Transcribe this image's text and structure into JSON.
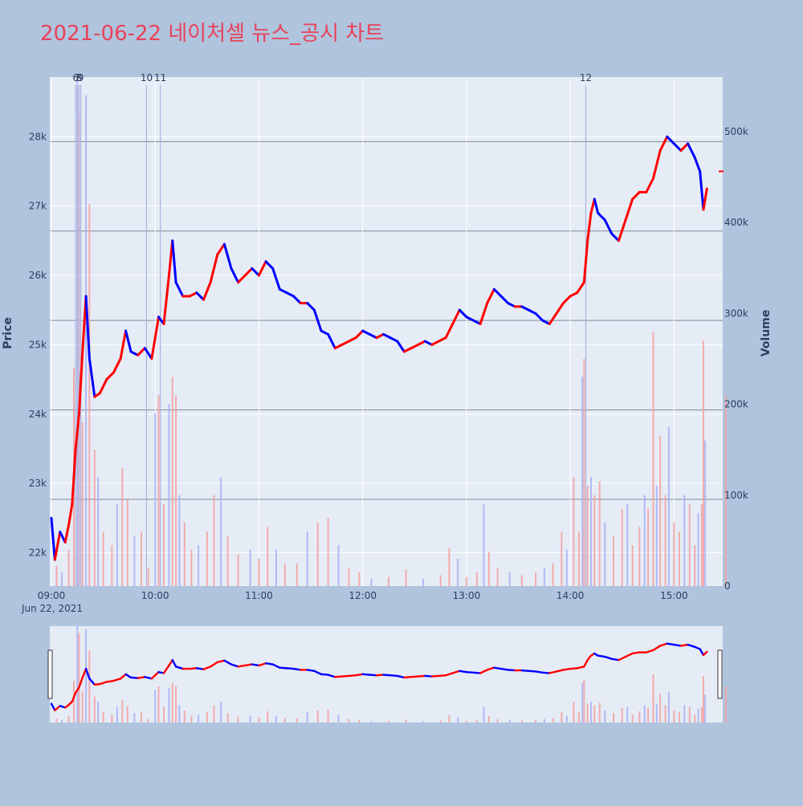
{
  "title": "2021-06-22 네이처셀 뉴스_공시 차트",
  "colors": {
    "background": "#b0c4de",
    "plot_bg": "#e5ecf6",
    "up": "#ff0000",
    "down": "#0000ff",
    "title": "#e8425a",
    "axis_text": "#2a3f5f",
    "event_line": "#a9b3e0",
    "level_line": "#7f8896"
  },
  "chart_data": {
    "type": "candlestick",
    "title": "2021-06-22 네이처셀 뉴스_공시 차트",
    "xlabel": "",
    "ylabel": "Price",
    "y2label": "Volume",
    "date_label": "Jun 22, 2021",
    "x_ticks": [
      "09:00",
      "10:00",
      "11:00",
      "12:00",
      "13:00",
      "14:00",
      "15:00"
    ],
    "x_range": [
      "09:00",
      "15:30"
    ],
    "y_ticks": [
      22000,
      23000,
      24000,
      25000,
      26000,
      27000,
      28000
    ],
    "y_tick_labels": [
      "22k",
      "23k",
      "24k",
      "25k",
      "26k",
      "27k",
      "28k"
    ],
    "y_range": [
      21520,
      28860
    ],
    "y2_ticks": [
      0,
      100000,
      200000,
      300000,
      400000,
      500000
    ],
    "y2_tick_labels": [
      "0",
      "100k",
      "200k",
      "300k",
      "400k",
      "500k"
    ],
    "y2_range": [
      0,
      560000
    ],
    "level_lines": [
      22770,
      24060,
      25350,
      26640,
      27930
    ],
    "events": [
      {
        "label": "6",
        "time": "09:14"
      },
      {
        "label": "7",
        "time": "09:15"
      },
      {
        "label": "8",
        "time": "09:16"
      },
      {
        "label": "9",
        "time": "09:17"
      },
      {
        "label": "10",
        "time": "09:55"
      },
      {
        "label": "11",
        "time": "10:03"
      },
      {
        "label": "12",
        "time": "14:09"
      }
    ],
    "price_path": [
      [
        "09:00",
        22500
      ],
      [
        "09:02",
        21900
      ],
      [
        "09:05",
        22300
      ],
      [
        "09:08",
        22150
      ],
      [
        "09:10",
        22400
      ],
      [
        "09:12",
        22700
      ],
      [
        "09:14",
        23500
      ],
      [
        "09:16",
        24000
      ],
      [
        "09:18",
        24900
      ],
      [
        "09:20",
        25700
      ],
      [
        "09:22",
        24800
      ],
      [
        "09:25",
        24250
      ],
      [
        "09:28",
        24300
      ],
      [
        "09:32",
        24500
      ],
      [
        "09:36",
        24600
      ],
      [
        "09:40",
        24800
      ],
      [
        "09:43",
        25200
      ],
      [
        "09:46",
        24900
      ],
      [
        "09:50",
        24850
      ],
      [
        "09:54",
        24950
      ],
      [
        "09:58",
        24800
      ],
      [
        "10:02",
        25400
      ],
      [
        "10:05",
        25300
      ],
      [
        "10:08",
        26000
      ],
      [
        "10:10",
        26500
      ],
      [
        "10:12",
        25900
      ],
      [
        "10:16",
        25700
      ],
      [
        "10:20",
        25700
      ],
      [
        "10:24",
        25750
      ],
      [
        "10:28",
        25650
      ],
      [
        "10:32",
        25900
      ],
      [
        "10:36",
        26300
      ],
      [
        "10:40",
        26450
      ],
      [
        "10:44",
        26100
      ],
      [
        "10:48",
        25900
      ],
      [
        "10:52",
        26000
      ],
      [
        "10:56",
        26100
      ],
      [
        "11:00",
        26000
      ],
      [
        "11:04",
        26200
      ],
      [
        "11:08",
        26100
      ],
      [
        "11:12",
        25800
      ],
      [
        "11:16",
        25750
      ],
      [
        "11:20",
        25700
      ],
      [
        "11:24",
        25600
      ],
      [
        "11:28",
        25600
      ],
      [
        "11:32",
        25500
      ],
      [
        "11:36",
        25200
      ],
      [
        "11:40",
        25150
      ],
      [
        "11:44",
        24950
      ],
      [
        "11:48",
        25000
      ],
      [
        "11:52",
        25050
      ],
      [
        "11:56",
        25100
      ],
      [
        "12:00",
        25200
      ],
      [
        "12:04",
        25150
      ],
      [
        "12:08",
        25100
      ],
      [
        "12:12",
        25150
      ],
      [
        "12:16",
        25100
      ],
      [
        "12:20",
        25050
      ],
      [
        "12:24",
        24900
      ],
      [
        "12:28",
        24950
      ],
      [
        "12:32",
        25000
      ],
      [
        "12:36",
        25050
      ],
      [
        "12:40",
        25000
      ],
      [
        "12:44",
        25050
      ],
      [
        "12:48",
        25100
      ],
      [
        "12:52",
        25300
      ],
      [
        "12:56",
        25500
      ],
      [
        "13:00",
        25400
      ],
      [
        "13:04",
        25350
      ],
      [
        "13:08",
        25300
      ],
      [
        "13:12",
        25600
      ],
      [
        "13:16",
        25800
      ],
      [
        "13:20",
        25700
      ],
      [
        "13:24",
        25600
      ],
      [
        "13:28",
        25550
      ],
      [
        "13:32",
        25550
      ],
      [
        "13:36",
        25500
      ],
      [
        "13:40",
        25450
      ],
      [
        "13:44",
        25350
      ],
      [
        "13:48",
        25300
      ],
      [
        "13:52",
        25450
      ],
      [
        "13:56",
        25600
      ],
      [
        "14:00",
        25700
      ],
      [
        "14:04",
        25750
      ],
      [
        "14:08",
        25900
      ],
      [
        "14:10",
        26500
      ],
      [
        "14:12",
        26900
      ],
      [
        "14:14",
        27100
      ],
      [
        "14:16",
        26900
      ],
      [
        "14:20",
        26800
      ],
      [
        "14:24",
        26600
      ],
      [
        "14:28",
        26500
      ],
      [
        "14:32",
        26800
      ],
      [
        "14:36",
        27100
      ],
      [
        "14:40",
        27200
      ],
      [
        "14:44",
        27200
      ],
      [
        "14:48",
        27400
      ],
      [
        "14:52",
        27800
      ],
      [
        "14:56",
        28000
      ],
      [
        "15:00",
        27900
      ],
      [
        "15:04",
        27800
      ],
      [
        "15:08",
        27900
      ],
      [
        "15:12",
        27700
      ],
      [
        "15:15",
        27500
      ],
      [
        "15:17",
        26950
      ],
      [
        "15:19",
        27250
      ]
    ],
    "volume_bars": [
      [
        "09:03",
        22000
      ],
      [
        "09:06",
        15000
      ],
      [
        "09:10",
        40000
      ],
      [
        "09:13",
        240000
      ],
      [
        "09:15",
        560000
      ],
      [
        "09:16",
        520000
      ],
      [
        "09:18",
        180000
      ],
      [
        "09:20",
        540000
      ],
      [
        "09:22",
        420000
      ],
      [
        "09:25",
        150000
      ],
      [
        "09:27",
        120000
      ],
      [
        "09:30",
        60000
      ],
      [
        "09:35",
        45000
      ],
      [
        "09:38",
        90000
      ],
      [
        "09:41",
        130000
      ],
      [
        "09:44",
        95000
      ],
      [
        "09:48",
        55000
      ],
      [
        "09:52",
        60000
      ],
      [
        "09:56",
        20000
      ],
      [
        "10:00",
        190000
      ],
      [
        "10:02",
        210000
      ],
      [
        "10:05",
        90000
      ],
      [
        "10:08",
        200000
      ],
      [
        "10:10",
        230000
      ],
      [
        "10:12",
        210000
      ],
      [
        "10:14",
        100000
      ],
      [
        "10:17",
        70000
      ],
      [
        "10:21",
        40000
      ],
      [
        "10:25",
        45000
      ],
      [
        "10:30",
        60000
      ],
      [
        "10:34",
        100000
      ],
      [
        "10:38",
        120000
      ],
      [
        "10:42",
        55000
      ],
      [
        "10:48",
        35000
      ],
      [
        "10:55",
        40000
      ],
      [
        "11:00",
        30000
      ],
      [
        "11:05",
        65000
      ],
      [
        "11:10",
        40000
      ],
      [
        "11:15",
        25000
      ],
      [
        "11:22",
        25000
      ],
      [
        "11:28",
        60000
      ],
      [
        "11:34",
        70000
      ],
      [
        "11:40",
        75000
      ],
      [
        "11:46",
        45000
      ],
      [
        "11:52",
        20000
      ],
      [
        "11:58",
        15000
      ],
      [
        "12:05",
        8000
      ],
      [
        "12:15",
        10000
      ],
      [
        "12:25",
        18000
      ],
      [
        "12:35",
        8000
      ],
      [
        "12:45",
        12000
      ],
      [
        "12:50",
        42000
      ],
      [
        "12:55",
        30000
      ],
      [
        "13:00",
        10000
      ],
      [
        "13:06",
        15000
      ],
      [
        "13:10",
        90000
      ],
      [
        "13:13",
        38000
      ],
      [
        "13:18",
        20000
      ],
      [
        "13:25",
        15000
      ],
      [
        "13:32",
        12000
      ],
      [
        "13:40",
        15000
      ],
      [
        "13:45",
        20000
      ],
      [
        "13:50",
        25000
      ],
      [
        "13:55",
        60000
      ],
      [
        "13:58",
        40000
      ],
      [
        "14:02",
        120000
      ],
      [
        "14:05",
        60000
      ],
      [
        "14:07",
        230000
      ],
      [
        "14:08",
        250000
      ],
      [
        "14:10",
        110000
      ],
      [
        "14:12",
        120000
      ],
      [
        "14:14",
        100000
      ],
      [
        "14:17",
        115000
      ],
      [
        "14:20",
        70000
      ],
      [
        "14:25",
        55000
      ],
      [
        "14:30",
        85000
      ],
      [
        "14:33",
        90000
      ],
      [
        "14:36",
        45000
      ],
      [
        "14:40",
        65000
      ],
      [
        "14:43",
        100000
      ],
      [
        "14:45",
        85000
      ],
      [
        "14:48",
        280000
      ],
      [
        "14:50",
        110000
      ],
      [
        "14:52",
        165000
      ],
      [
        "14:55",
        100000
      ],
      [
        "14:57",
        175000
      ],
      [
        "15:00",
        70000
      ],
      [
        "15:03",
        60000
      ],
      [
        "15:06",
        100000
      ],
      [
        "15:09",
        90000
      ],
      [
        "15:12",
        45000
      ],
      [
        "15:14",
        80000
      ],
      [
        "15:16",
        90000
      ],
      [
        "15:17",
        270000
      ],
      [
        "15:18",
        160000
      ],
      [
        "15:30",
        210000
      ]
    ]
  }
}
